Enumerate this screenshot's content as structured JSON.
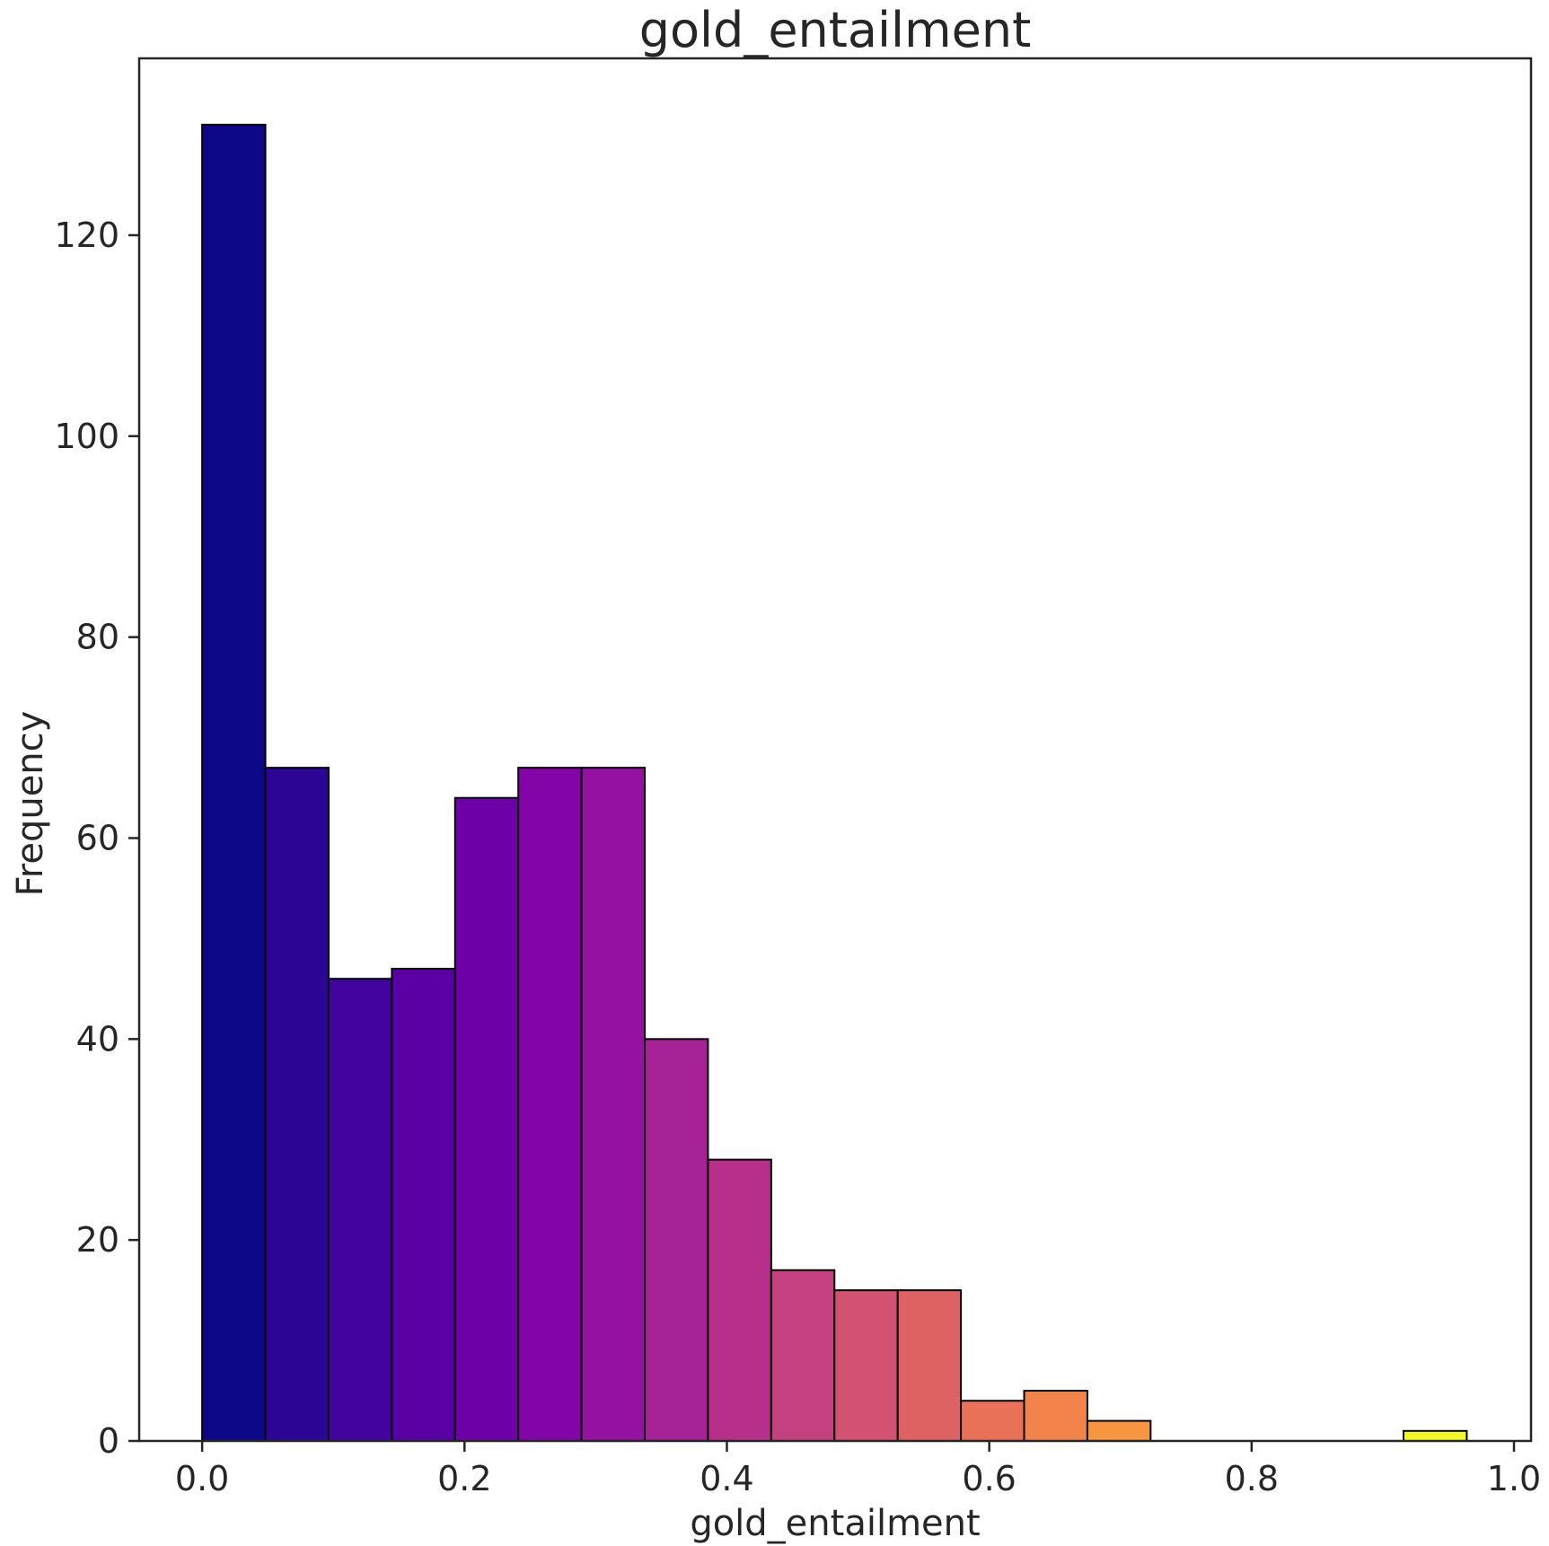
{
  "chart_data": {
    "type": "bar",
    "title": "gold_entailment",
    "xlabel": "gold_entailment",
    "ylabel": "Frequency",
    "xlim": [
      -0.048,
      1.013
    ],
    "ylim": [
      0,
      137.6
    ],
    "grid": false,
    "bin_width": 0.0482,
    "bins": [
      {
        "x0": 0.0,
        "x1": 0.0482,
        "count": 131,
        "color": "#0d0887"
      },
      {
        "x0": 0.0482,
        "x1": 0.0964,
        "count": 67,
        "color": "#2c0594"
      },
      {
        "x0": 0.0964,
        "x1": 0.1446,
        "count": 46,
        "color": "#43039e"
      },
      {
        "x0": 0.1446,
        "x1": 0.1928,
        "count": 47,
        "color": "#5901a5"
      },
      {
        "x0": 0.1928,
        "x1": 0.241,
        "count": 64,
        "color": "#6e00a8"
      },
      {
        "x0": 0.241,
        "x1": 0.2892,
        "count": 67,
        "color": "#8405a7"
      },
      {
        "x0": 0.2892,
        "x1": 0.3374,
        "count": 67,
        "color": "#9511a1"
      },
      {
        "x0": 0.3374,
        "x1": 0.3856,
        "count": 40,
        "color": "#a72197"
      },
      {
        "x0": 0.3856,
        "x1": 0.4338,
        "count": 28,
        "color": "#b6308b"
      },
      {
        "x0": 0.4338,
        "x1": 0.482,
        "count": 17,
        "color": "#c5407e"
      },
      {
        "x0": 0.482,
        "x1": 0.5302,
        "count": 15,
        "color": "#d35171"
      },
      {
        "x0": 0.5302,
        "x1": 0.5784,
        "count": 15,
        "color": "#de6164"
      },
      {
        "x0": 0.5784,
        "x1": 0.6266,
        "count": 4,
        "color": "#e97158"
      },
      {
        "x0": 0.6266,
        "x1": 0.6748,
        "count": 5,
        "color": "#f2844b"
      },
      {
        "x0": 0.6748,
        "x1": 0.723,
        "count": 2,
        "color": "#f89540"
      },
      {
        "x0": 0.723,
        "x1": 0.7712,
        "count": 0,
        "color": "#fca636"
      },
      {
        "x0": 0.7712,
        "x1": 0.8194,
        "count": 0,
        "color": "#feba2c"
      },
      {
        "x0": 0.8194,
        "x1": 0.8676,
        "count": 0,
        "color": "#fcce25"
      },
      {
        "x0": 0.8676,
        "x1": 0.9158,
        "count": 0,
        "color": "#f7e225"
      },
      {
        "x0": 0.9158,
        "x1": 0.964,
        "count": 1,
        "color": "#f0f921"
      }
    ],
    "x_ticks": [
      {
        "value": 0.0,
        "label": "0.0"
      },
      {
        "value": 0.2,
        "label": "0.2"
      },
      {
        "value": 0.4,
        "label": "0.4"
      },
      {
        "value": 0.6,
        "label": "0.6"
      },
      {
        "value": 0.8,
        "label": "0.8"
      },
      {
        "value": 1.0,
        "label": "1.0"
      }
    ],
    "y_ticks": [
      {
        "value": 0,
        "label": "0"
      },
      {
        "value": 20,
        "label": "20"
      },
      {
        "value": 40,
        "label": "40"
      },
      {
        "value": 60,
        "label": "60"
      },
      {
        "value": 80,
        "label": "80"
      },
      {
        "value": 100,
        "label": "100"
      },
      {
        "value": 120,
        "label": "120"
      }
    ],
    "colors": {
      "axis": "#262626",
      "bar_edge": "#000000"
    }
  }
}
